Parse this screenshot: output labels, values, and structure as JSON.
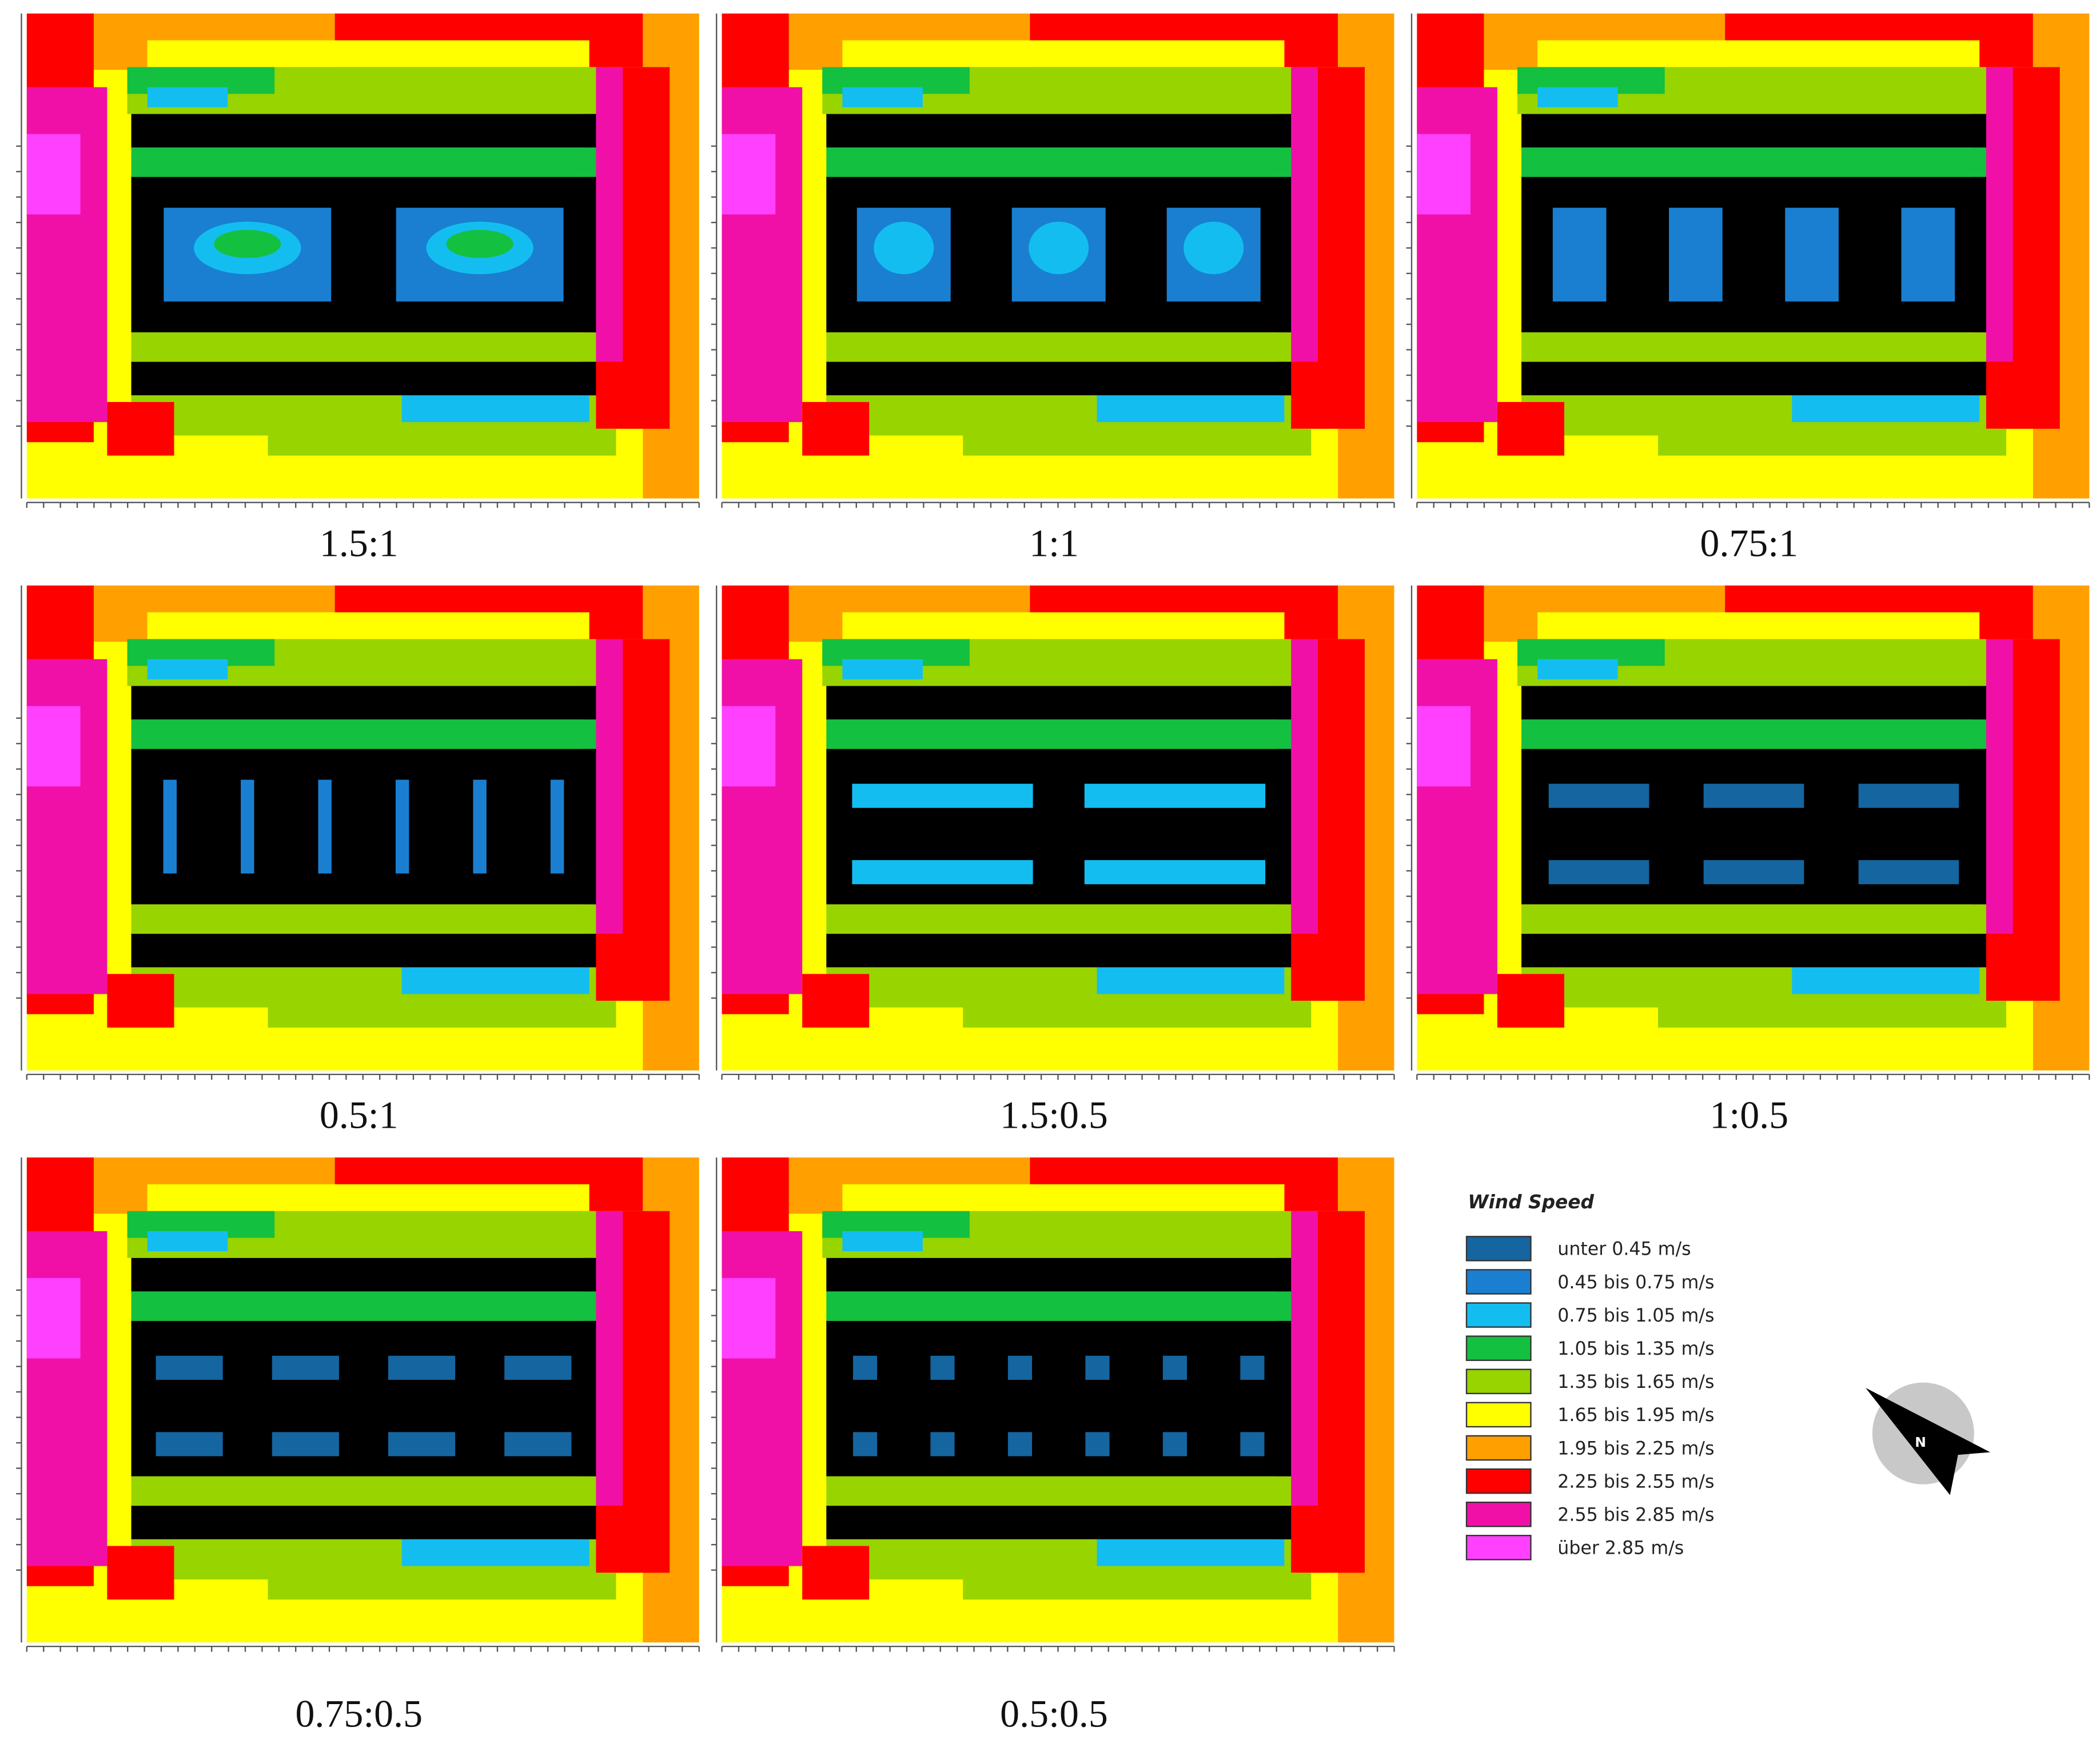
{
  "panels": [
    {
      "label": "1.5:1"
    },
    {
      "label": "1:1"
    },
    {
      "label": "0.75:1"
    },
    {
      "label": "0.5:1"
    },
    {
      "label": "1.5:0.5"
    },
    {
      "label": "1:0.5"
    },
    {
      "label": "0.75:0.5"
    },
    {
      "label": "0.5:0.5"
    }
  ],
  "legend": {
    "title": "Wind Speed",
    "items": [
      {
        "label": "unter 0.45 m/s",
        "color": "#1565a0"
      },
      {
        "label": "0.45 bis 0.75 m/s",
        "color": "#1a7fd0"
      },
      {
        "label": "0.75 bis 1.05 m/s",
        "color": "#14bdf0"
      },
      {
        "label": "1.05 bis 1.35 m/s",
        "color": "#14c040"
      },
      {
        "label": "1.35 bis 1.65 m/s",
        "color": "#98d400"
      },
      {
        "label": "1.65 bis 1.95 m/s",
        "color": "#ffff00"
      },
      {
        "label": "1.95 bis 2.25 m/s",
        "color": "#ffa000"
      },
      {
        "label": "2.25 bis 2.55 m/s",
        "color": "#ff0000"
      },
      {
        "label": "2.55 bis 2.85 m/s",
        "color": "#f010a8"
      },
      {
        "label": "über 2.85 m/s",
        "color": "#ff40ff"
      }
    ]
  },
  "compass": "N"
}
